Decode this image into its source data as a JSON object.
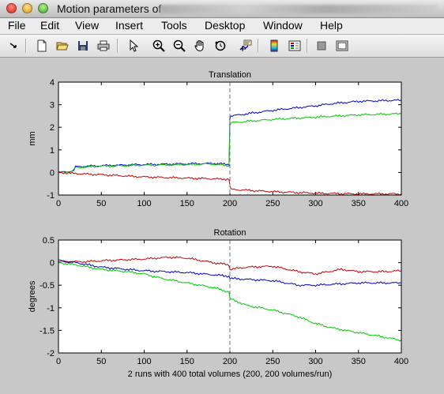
{
  "window": {
    "title": "Motion parameters of"
  },
  "menu": [
    "File",
    "Edit",
    "View",
    "Insert",
    "Tools",
    "Desktop",
    "Window",
    "Help"
  ],
  "toolbar": [
    {
      "icon": "arrow-pointer-icon"
    },
    {
      "icon": "new-file-icon"
    },
    {
      "icon": "open-folder-icon"
    },
    {
      "icon": "save-icon"
    },
    {
      "icon": "print-icon"
    },
    {
      "icon": "edit-cursor-icon"
    },
    {
      "icon": "zoom-in-icon"
    },
    {
      "icon": "zoom-out-icon"
    },
    {
      "icon": "pan-hand-icon"
    },
    {
      "icon": "rotate-3d-icon"
    },
    {
      "icon": "data-cursor-icon"
    },
    {
      "icon": "colorbar-icon"
    },
    {
      "icon": "legend-icon"
    },
    {
      "icon": "hide-plot-tools-icon"
    },
    {
      "icon": "show-plot-tools-icon"
    }
  ],
  "colors": {
    "blue": "#0000c8",
    "green": "#00c800",
    "red": "#c80000",
    "divider": "#777777"
  },
  "chart_data": [
    {
      "type": "line",
      "title": "Translation",
      "ylabel": "mm",
      "xlabel": "",
      "xlim": [
        0,
        400
      ],
      "ylim": [
        -1,
        4
      ],
      "xticks": [
        0,
        50,
        100,
        150,
        200,
        250,
        300,
        350,
        400
      ],
      "yticks": [
        -1,
        0,
        1,
        2,
        3,
        4
      ],
      "divider_x": 200,
      "series": [
        {
          "color": "blue",
          "x": [
            0,
            15,
            18,
            20,
            50,
            100,
            150,
            180,
            199,
            200,
            201,
            250,
            300,
            320,
            350,
            400
          ],
          "y": [
            0,
            0.05,
            0.1,
            0.25,
            0.3,
            0.35,
            0.38,
            0.4,
            0.35,
            2.4,
            2.5,
            2.75,
            2.95,
            3.05,
            3.15,
            3.2
          ]
        },
        {
          "color": "green",
          "x": [
            0,
            15,
            18,
            20,
            50,
            100,
            150,
            180,
            199,
            200,
            201,
            250,
            300,
            350,
            400
          ],
          "y": [
            0,
            0.05,
            0.1,
            0.22,
            0.28,
            0.32,
            0.35,
            0.38,
            0.3,
            2.1,
            2.2,
            2.35,
            2.45,
            2.55,
            2.6
          ]
        },
        {
          "color": "red",
          "x": [
            0,
            20,
            50,
            100,
            150,
            199,
            200,
            201,
            250,
            300,
            350,
            400
          ],
          "y": [
            0,
            -0.05,
            -0.1,
            -0.2,
            -0.25,
            -0.3,
            -0.6,
            -0.75,
            -0.85,
            -0.92,
            -0.95,
            -0.95
          ]
        }
      ]
    },
    {
      "type": "line",
      "title": "Rotation",
      "ylabel": "degrees",
      "xlabel": "2 runs with 400 total volumes (200, 200 volumes/run)",
      "xlim": [
        0,
        400
      ],
      "ylim": [
        -2,
        0.5
      ],
      "xticks": [
        0,
        50,
        100,
        150,
        200,
        250,
        300,
        350,
        400
      ],
      "yticks": [
        -2,
        -1.5,
        -1,
        -0.5,
        0,
        0.5
      ],
      "divider_x": 200,
      "series": [
        {
          "color": "red",
          "x": [
            0,
            30,
            60,
            100,
            130,
            150,
            180,
            199,
            200,
            220,
            250,
            280,
            300,
            330,
            350,
            380,
            400
          ],
          "y": [
            0.02,
            0.02,
            0.05,
            0.08,
            0.12,
            0.1,
            0.0,
            -0.05,
            -0.15,
            -0.1,
            -0.08,
            -0.2,
            -0.25,
            -0.15,
            -0.2,
            -0.2,
            -0.18
          ]
        },
        {
          "color": "blue",
          "x": [
            0,
            20,
            50,
            80,
            100,
            150,
            199,
            200,
            250,
            280,
            300,
            350,
            400
          ],
          "y": [
            0.05,
            0.0,
            -0.1,
            -0.15,
            -0.18,
            -0.22,
            -0.3,
            -0.35,
            -0.4,
            -0.5,
            -0.5,
            -0.45,
            -0.45
          ]
        },
        {
          "color": "green",
          "x": [
            0,
            20,
            50,
            80,
            100,
            120,
            150,
            180,
            199,
            200,
            220,
            250,
            280,
            300,
            320,
            350,
            380,
            400
          ],
          "y": [
            0.0,
            -0.05,
            -0.15,
            -0.2,
            -0.25,
            -0.35,
            -0.45,
            -0.55,
            -0.65,
            -0.8,
            -0.95,
            -1.05,
            -1.2,
            -1.35,
            -1.45,
            -1.55,
            -1.65,
            -1.72
          ]
        }
      ]
    }
  ]
}
